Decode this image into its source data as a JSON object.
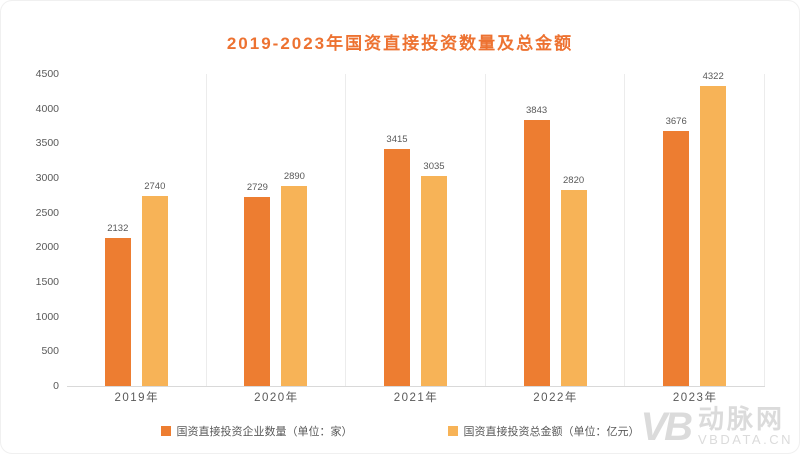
{
  "title": "2019-2023年国资直接投资数量及总金额",
  "colors": {
    "title": "#ED7231",
    "series1": "#ED7D31",
    "series2": "#F7B357",
    "axis_text": "#595959",
    "separator": "#ECECEC",
    "watermark": "#DBDBDB"
  },
  "chart_data": {
    "type": "bar",
    "title": "2019-2023年国资直接投资数量及总金额",
    "categories": [
      "2019年",
      "2020年",
      "2021年",
      "2022年",
      "2023年"
    ],
    "series": [
      {
        "name": "国资直接投资企业数量（单位：家）",
        "color": "#ED7D31",
        "values": [
          2132,
          2729,
          3415,
          3843,
          3676
        ]
      },
      {
        "name": "国资直接投资总金额（单位：亿元）",
        "color": "#F7B357",
        "values": [
          2740,
          2890,
          3035,
          2820,
          4322
        ]
      }
    ],
    "xlabel": "",
    "ylabel": "",
    "ylim": [
      0,
      4500
    ],
    "yticks": [
      0,
      500,
      1000,
      1500,
      2000,
      2500,
      3000,
      3500,
      4000,
      4500
    ],
    "grid": "vertical category separators only",
    "legend_position": "bottom"
  },
  "watermark": {
    "logo": "VB",
    "name": "动脉网",
    "site": "VBDATA.CN"
  }
}
